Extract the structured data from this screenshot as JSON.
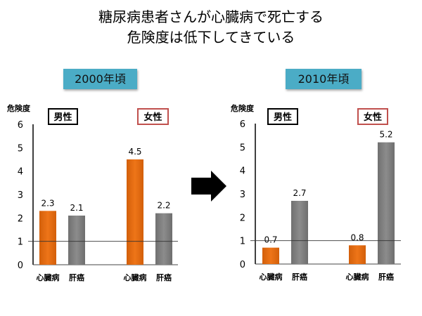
{
  "title_lines": [
    "糖尿病患者さんが心臓病で死亡する",
    "危険度は低下してきている"
  ],
  "colors": {
    "heart": "#ee7518",
    "liver": "#8c8c8c",
    "period_bg": "#4bacc6",
    "female_border": "#c0504d"
  },
  "arrow_icon": "right-arrow",
  "chart_data": [
    {
      "type": "bar",
      "title": "2000年頃",
      "ylabel": "危険度",
      "ylim": [
        0,
        6
      ],
      "yticks": [
        "0",
        "1",
        "2",
        "3",
        "4",
        "5",
        "6"
      ],
      "reference_line": 1,
      "groups": [
        {
          "name": "男性",
          "categories": [
            "心臓病",
            "肝癌"
          ],
          "values": [
            2.3,
            2.1
          ],
          "labels": [
            "2.3",
            "2.1"
          ]
        },
        {
          "name": "女性",
          "categories": [
            "心臓病",
            "肝癌"
          ],
          "values": [
            4.5,
            2.2
          ],
          "labels": [
            "4.5",
            "2.2"
          ]
        }
      ]
    },
    {
      "type": "bar",
      "title": "2010年頃",
      "ylabel": "危険度",
      "ylim": [
        0,
        6
      ],
      "yticks": [
        "0",
        "1",
        "2",
        "3",
        "4",
        "5",
        "6"
      ],
      "reference_line": 1,
      "groups": [
        {
          "name": "男性",
          "categories": [
            "心臓病",
            "肝癌"
          ],
          "values": [
            0.7,
            2.7
          ],
          "labels": [
            "0.7",
            "2.7"
          ]
        },
        {
          "name": "女性",
          "categories": [
            "心臓病",
            "肝癌"
          ],
          "values": [
            0.8,
            5.2
          ],
          "labels": [
            "0.8",
            "5.2"
          ]
        }
      ]
    }
  ]
}
